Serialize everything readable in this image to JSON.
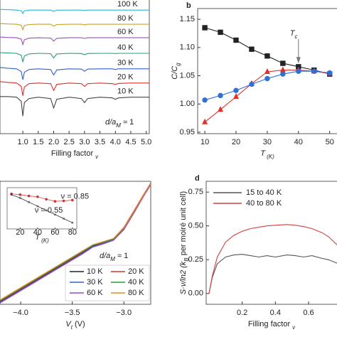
{
  "chart_data": [
    {
      "type": "line",
      "panel": null,
      "xlabel": [
        "Filling factor ",
        "ν"
      ],
      "xlim": [
        0.26,
        5.1
      ],
      "ylim": [
        0,
        10
      ],
      "xticks": [
        {
          "value": 1,
          "label": "1.0"
        },
        1.5,
        {
          "value": 2,
          "label": "2.0"
        },
        2.5,
        {
          "value": 3,
          "label": "3.0"
        },
        3.5,
        {
          "value": 4,
          "label": "4.0"
        },
        4.5,
        {
          "value": 5,
          "label": "5.0"
        }
      ],
      "annotations": [
        [
          "d/a",
          "M",
          " ≈ 1"
        ]
      ],
      "x": [
        0.26,
        0.5,
        0.8,
        0.95,
        1.0,
        1.05,
        1.2,
        1.5,
        1.9,
        2.0,
        2.1,
        2.5,
        2.9,
        3.0,
        3.1,
        3.5,
        3.9,
        4.0,
        4.1,
        4.5,
        5.1
      ],
      "series": [
        {
          "name": "10 K",
          "color": "#444444",
          "values": [
            2.75,
            2.75,
            2.7,
            2.4,
            1.3,
            2.3,
            2.6,
            2.7,
            2.6,
            1.9,
            2.55,
            2.7,
            2.6,
            2.3,
            2.6,
            2.7,
            2.65,
            2.55,
            2.65,
            2.7,
            2.7
          ]
        },
        {
          "name": "20 K",
          "color": "#e0302a",
          "values": [
            3.85,
            3.8,
            3.75,
            3.5,
            2.8,
            3.45,
            3.7,
            3.75,
            3.7,
            3.2,
            3.65,
            3.75,
            3.7,
            3.5,
            3.7,
            3.75,
            3.7,
            3.65,
            3.72,
            3.75,
            3.75
          ]
        },
        {
          "name": "30 K",
          "color": "#3060d0",
          "values": [
            4.9,
            4.85,
            4.8,
            4.6,
            4.0,
            4.55,
            4.75,
            4.8,
            4.75,
            4.35,
            4.72,
            4.8,
            4.78,
            4.62,
            4.78,
            4.8,
            4.8,
            4.75,
            4.8,
            4.8,
            4.8
          ]
        },
        {
          "name": "40 K",
          "color": "#2a9a7a",
          "values": [
            6.0,
            5.98,
            5.95,
            5.8,
            5.3,
            5.75,
            5.9,
            5.95,
            5.92,
            5.6,
            5.9,
            5.95,
            5.93,
            5.85,
            5.93,
            5.95,
            5.95,
            5.93,
            5.95,
            5.95,
            5.95
          ]
        },
        {
          "name": "60 K",
          "color": "#9a4fc0",
          "values": [
            7.15,
            7.12,
            7.1,
            7.0,
            6.6,
            6.95,
            7.07,
            7.1,
            7.08,
            6.85,
            7.06,
            7.1,
            7.1,
            7.05,
            7.1,
            7.1,
            7.1,
            7.1,
            7.1,
            7.1,
            7.1
          ]
        },
        {
          "name": "80 K",
          "color": "#c8a020",
          "values": [
            8.15,
            8.12,
            8.1,
            8.02,
            7.7,
            8.0,
            8.08,
            8.1,
            8.1,
            7.95,
            8.08,
            8.1,
            8.1,
            8.06,
            8.1,
            8.1,
            8.1,
            8.1,
            8.1,
            8.1,
            8.1
          ]
        },
        {
          "name": "100 K",
          "color": "#20b8d8",
          "values": [
            9.2,
            9.18,
            9.15,
            9.1,
            8.9,
            9.1,
            9.15,
            9.15,
            9.15,
            9.05,
            9.14,
            9.15,
            9.15,
            9.13,
            9.15,
            9.15,
            9.15,
            9.15,
            9.15,
            9.15,
            9.15
          ]
        }
      ]
    },
    {
      "type": "line",
      "panel": "b",
      "xlabel": [
        "T",
        " (K)"
      ],
      "ylabel": [
        "C/C",
        "g"
      ],
      "xlim": [
        7.7,
        52.8
      ],
      "ylim": [
        0.9475,
        1.169
      ],
      "xticks": [
        10,
        20,
        30,
        40,
        50
      ],
      "yticks": [
        {
          "value": 0.95,
          "label": "0.95"
        },
        {
          "value": 1.0,
          "label": "1.00"
        },
        {
          "value": 1.05,
          "label": "1.05"
        },
        {
          "value": 1.1,
          "label": "1.10"
        },
        {
          "value": 1.15,
          "label": "1.15"
        }
      ],
      "annotations": [
        [
          "T",
          "c"
        ]
      ],
      "arrow_x": 40,
      "x": [
        10,
        15,
        20,
        25,
        30,
        35,
        40,
        45,
        50
      ],
      "series": [
        {
          "color": "#222222",
          "marker": "square",
          "values": [
            1.135,
            1.127,
            1.113,
            1.097,
            1.085,
            1.072,
            1.066,
            1.06,
            1.053
          ]
        },
        {
          "color": "#e0302a",
          "marker": "triangle",
          "values": [
            0.968,
            0.99,
            1.013,
            1.036,
            1.057,
            1.06,
            1.06,
            1.058,
            1.054
          ]
        },
        {
          "color": "#2f6fd8",
          "marker": "circle",
          "values": [
            1.007,
            1.015,
            1.024,
            1.035,
            1.045,
            1.053,
            1.058,
            1.058,
            1.055
          ]
        }
      ]
    },
    {
      "type": "line",
      "panel": null,
      "xlabel": [
        "V",
        "t",
        " (V)"
      ],
      "xlim": [
        -4.2,
        -2.74
      ],
      "ylim": [
        0,
        10
      ],
      "xticks": [
        {
          "value": -4,
          "label": "−4.0"
        },
        {
          "value": -3.5,
          "label": "−3.5"
        },
        {
          "value": -3,
          "label": "−3.0"
        }
      ],
      "annotations": [
        [
          "d/a",
          "M",
          " ≈ 1"
        ]
      ],
      "x": [
        -4.2,
        -4.0,
        -3.7,
        -3.4,
        -3.3,
        -3.2,
        -3.1,
        -3.0,
        -2.9,
        -2.8,
        -2.74
      ],
      "series": [
        {
          "name": "10 K",
          "color": "#222222",
          "values": [
            0.2,
            1.2,
            2.7,
            4.2,
            4.75,
            4.95,
            5.3,
            6.2,
            7.6,
            9.0,
            9.8
          ]
        },
        {
          "name": "20 K",
          "color": "#e0302a",
          "values": [
            0.25,
            1.25,
            2.75,
            4.25,
            4.8,
            5.0,
            5.35,
            6.25,
            7.65,
            9.05,
            9.85
          ]
        },
        {
          "name": "30 K",
          "color": "#3060d0",
          "values": [
            0.15,
            1.15,
            2.65,
            4.15,
            4.7,
            4.95,
            5.25,
            6.1,
            7.5,
            8.95,
            9.75
          ]
        },
        {
          "name": "40 K",
          "color": "#2a9a3a",
          "values": [
            0.3,
            1.3,
            2.8,
            4.3,
            4.8,
            5.05,
            5.3,
            6.15,
            7.55,
            8.95,
            9.75
          ]
        },
        {
          "name": "60 K",
          "color": "#9a4fc0",
          "values": [
            0.1,
            1.1,
            2.6,
            4.1,
            4.65,
            4.9,
            5.2,
            6.05,
            7.45,
            8.9,
            9.7
          ]
        },
        {
          "name": "80 K",
          "color": "#e09020",
          "values": [
            0.35,
            1.35,
            2.85,
            4.35,
            4.85,
            5.1,
            5.35,
            6.2,
            7.6,
            9.0,
            9.8
          ]
        }
      ]
    },
    {
      "type": "line",
      "panel": "d",
      "xlabel": [
        "Filling factor ",
        "ν"
      ],
      "ylabel": [
        "S·ν/ln2 (k",
        "B",
        " per moiré unit cell)"
      ],
      "xlim": [
        -0.017,
        0.78
      ],
      "ylim": [
        -0.08,
        0.83
      ],
      "xticks": [
        0.2,
        0.4,
        0.6
      ],
      "yticks": [
        {
          "value": 0,
          "label": "0.00"
        },
        0.25,
        {
          "value": 0.5,
          "label": "0.50"
        },
        0.75
      ],
      "x": [
        0,
        0.02,
        0.05,
        0.1,
        0.15,
        0.2,
        0.25,
        0.3,
        0.35,
        0.4,
        0.47,
        0.52,
        0.57,
        0.62,
        0.68,
        0.72,
        0.78
      ],
      "series": [
        {
          "name": "15 to 40 K",
          "color": "#555555",
          "values": [
            0,
            0.12,
            0.22,
            0.27,
            0.285,
            0.29,
            0.28,
            0.27,
            0.28,
            0.27,
            0.285,
            0.28,
            0.27,
            0.28,
            0.26,
            0.25,
            0.22
          ]
        },
        {
          "name": "40 to 80 K",
          "color": "#d04040",
          "values": [
            0,
            0.13,
            0.27,
            0.38,
            0.43,
            0.46,
            0.48,
            0.49,
            0.5,
            0.505,
            0.51,
            0.505,
            0.495,
            0.48,
            0.45,
            0.42,
            0.35
          ]
        }
      ]
    },
    {
      "type": "line",
      "panel": null,
      "xlabel": [
        "T",
        " (K)"
      ],
      "xlim": [
        5,
        85
      ],
      "ylim": [
        0,
        10
      ],
      "xticks": [
        20,
        40,
        60,
        80
      ],
      "x": [
        10,
        20,
        30,
        40,
        50,
        60,
        70,
        80
      ],
      "series": [
        {
          "name": "ν = 0.85",
          "color": "#d03030",
          "marker": "circle",
          "values": [
            8.5,
            8.3,
            8.0,
            7.8,
            7.2,
            6.7,
            6.8,
            7.0
          ]
        },
        {
          "name": "ν = 0.55",
          "color": "#222222",
          "marker": "cross",
          "values": [
            8.3,
            7.5,
            6.5,
            5.5,
            4.5,
            3.5,
            2.5,
            1.5
          ]
        }
      ]
    }
  ]
}
